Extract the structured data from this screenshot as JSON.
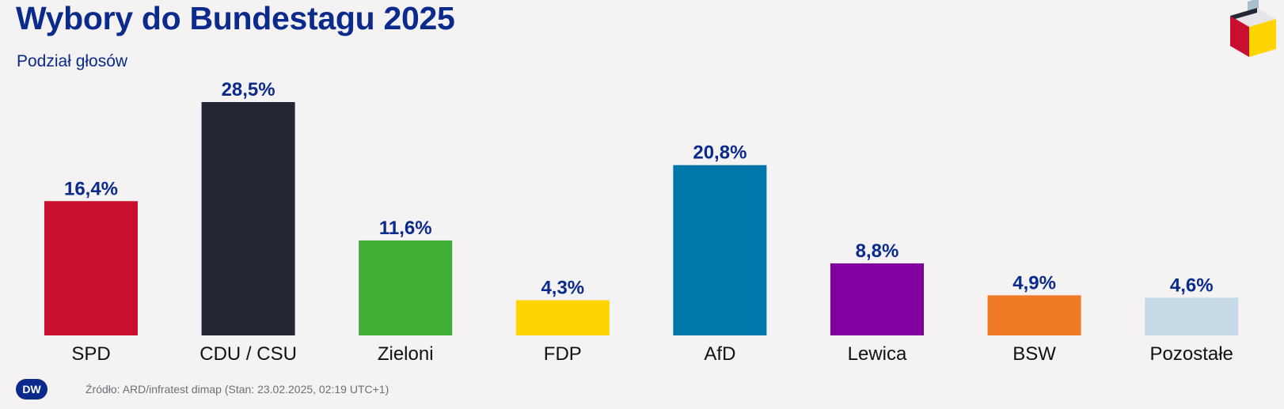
{
  "header": {
    "title": "Wybory do Bundestagu 2025",
    "subtitle": "Podział głosów"
  },
  "footer": {
    "source": "Źródło: ARD/infratest dimap (Stan: 23.02.2025, 02:19 UTC+1)",
    "logo_text": "DW"
  },
  "colors": {
    "label": "#0a2a8c",
    "category": "#111111"
  },
  "chart_data": {
    "type": "bar",
    "title": "Wybory do Bundestagu 2025",
    "subtitle": "Podział głosów",
    "xlabel": "",
    "ylabel": "",
    "ylim": [
      0,
      30
    ],
    "grid": false,
    "legend": "none",
    "categories": [
      "SPD",
      "CDU / CSU",
      "Zieloni",
      "FDP",
      "AfD",
      "Lewica",
      "BSW",
      "Pozostałe"
    ],
    "values": [
      16.4,
      28.5,
      11.6,
      4.3,
      20.8,
      8.8,
      4.9,
      4.6
    ],
    "value_labels": [
      "16,4%",
      "28,5%",
      "11,6%",
      "4,3%",
      "20,8%",
      "8,8%",
      "4,9%",
      "4,6%"
    ],
    "colors": [
      "#c8102e",
      "#232733",
      "#41ad35",
      "#ffd500",
      "#0077aa",
      "#82009f",
      "#f07b26",
      "#c6d9e6"
    ]
  }
}
